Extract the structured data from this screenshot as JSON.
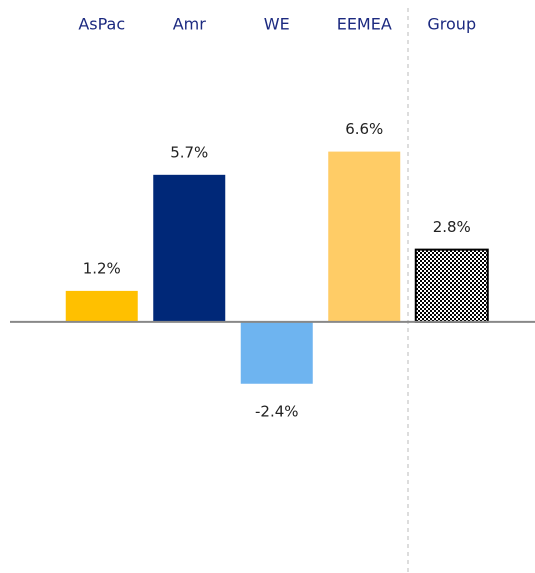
{
  "chart_data": {
    "type": "bar",
    "categories": [
      "AsPac",
      "Amr",
      "WE",
      "EEMEA",
      "Group"
    ],
    "values": [
      1.2,
      5.7,
      -2.4,
      6.6,
      2.8
    ],
    "value_labels": [
      "1.2%",
      "5.7%",
      "-2.4%",
      "6.6%",
      "2.8%"
    ],
    "colors": [
      "#ffc000",
      "#002878",
      "#6eb4f0",
      "#ffcc66",
      "#000000"
    ],
    "patterns": [
      null,
      null,
      null,
      null,
      "checkerboard"
    ],
    "ylim": [
      -9,
      10.5
    ]
  }
}
